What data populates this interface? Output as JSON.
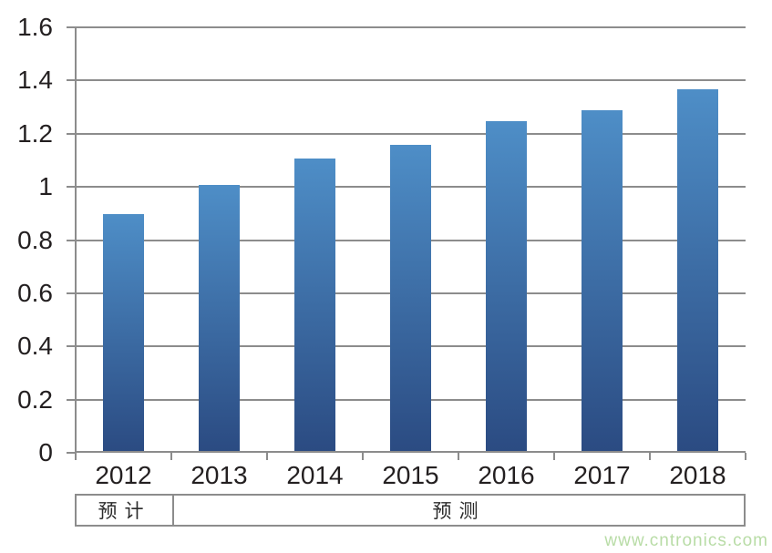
{
  "chart_data": {
    "type": "bar",
    "title": "",
    "xlabel": "",
    "ylabel": "",
    "categories": [
      "2012",
      "2013",
      "2014",
      "2015",
      "2016",
      "2017",
      "2018"
    ],
    "values": [
      0.89,
      1.0,
      1.1,
      1.15,
      1.24,
      1.28,
      1.36
    ],
    "ylim": [
      0,
      1.6
    ],
    "ytick_values": [
      0,
      0.2,
      0.4,
      0.6,
      0.8,
      1,
      1.2,
      1.4,
      1.6
    ],
    "ytick_labels": [
      "0",
      "0.2",
      "0.4",
      "0.6",
      "0.8",
      "1",
      "1.2",
      "1.4",
      "1.6"
    ],
    "grid": "horizontal",
    "legend": "none",
    "bar_color_top": "#4e8ec7",
    "bar_color_bottom": "#2b4b82",
    "grid_color": "#8c8c8c",
    "period_annotations": [
      {
        "label": "预计",
        "covers": [
          "2012"
        ]
      },
      {
        "label": "预测",
        "covers": [
          "2013",
          "2014",
          "2015",
          "2016",
          "2017",
          "2018"
        ]
      }
    ]
  },
  "annotation": {
    "estimate_label": "预计",
    "forecast_label": "预测"
  },
  "watermark": {
    "text": "www.cntronics.com",
    "color": "#b8dca6"
  }
}
